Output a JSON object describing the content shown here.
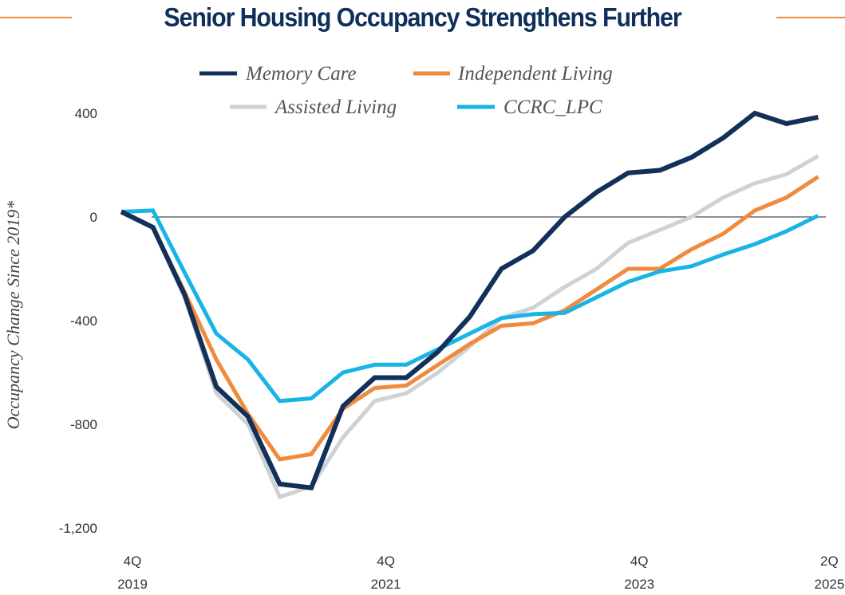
{
  "chart_data": {
    "type": "line",
    "title": "Senior Housing Occupancy Strengthens Further",
    "xlabel": "",
    "ylabel": "Occupancy Change Since 2019*",
    "ylim": [
      -1200,
      400
    ],
    "yticks": [
      400,
      0,
      -400,
      -800,
      -1200
    ],
    "ytick_labels": [
      "400",
      "0",
      "-400",
      "-800",
      "-1,200"
    ],
    "x": [
      "4Q 2019",
      "1Q 2020",
      "2Q 2020",
      "3Q 2020",
      "4Q 2020",
      "1Q 2021",
      "2Q 2021",
      "3Q 2021",
      "4Q 2021",
      "1Q 2022",
      "2Q 2022",
      "3Q 2022",
      "4Q 2022",
      "1Q 2023",
      "2Q 2023",
      "3Q 2023",
      "4Q 2023",
      "1Q 2024",
      "2Q 2024",
      "3Q 2024",
      "4Q 2024",
      "1Q 2025",
      "2Q 2025"
    ],
    "xticks": [
      {
        "index": 0,
        "line1": "4Q",
        "line2": "2019"
      },
      {
        "index": 8,
        "line1": "4Q",
        "line2": "2021"
      },
      {
        "index": 16,
        "line1": "4Q",
        "line2": "2023"
      },
      {
        "index": 22,
        "line1": "2Q",
        "line2": "2025"
      }
    ],
    "zero_line": true,
    "grid": false,
    "legend_position": "top",
    "series": [
      {
        "name": "Assisted Living",
        "color": "#cfd2d4",
        "values": [
          20,
          -40,
          -310,
          -680,
          -800,
          -1080,
          -1040,
          -850,
          -710,
          -680,
          -600,
          -500,
          -390,
          -350,
          -270,
          -200,
          -100,
          -50,
          0,
          75,
          130,
          165,
          235
        ]
      },
      {
        "name": "Independent Living",
        "color": "#f08a3e",
        "values": [
          20,
          -40,
          -290,
          -550,
          -760,
          -935,
          -915,
          -740,
          -660,
          -650,
          -570,
          -490,
          -420,
          -410,
          -360,
          -280,
          -200,
          -200,
          -125,
          -65,
          25,
          75,
          155
        ]
      },
      {
        "name": "CCRC_LPC",
        "color": "#18b4e6",
        "values": [
          20,
          25,
          -215,
          -450,
          -550,
          -710,
          -700,
          -600,
          -570,
          -570,
          -510,
          -450,
          -390,
          -375,
          -370,
          -310,
          -250,
          -210,
          -190,
          -145,
          -105,
          -55,
          5
        ]
      },
      {
        "name": "Memory Care",
        "color": "#13305a",
        "values": [
          20,
          -40,
          -300,
          -655,
          -770,
          -1030,
          -1045,
          -730,
          -620,
          -620,
          -520,
          -385,
          -200,
          -130,
          0,
          95,
          170,
          180,
          230,
          305,
          400,
          360,
          385
        ]
      }
    ],
    "legend": [
      {
        "name": "Memory Care",
        "color": "#13305a"
      },
      {
        "name": "Independent Living",
        "color": "#f08a3e"
      },
      {
        "name": "Assisted Living",
        "color": "#cfd2d4"
      },
      {
        "name": "CCRC_LPC",
        "color": "#18b4e6"
      }
    ]
  },
  "title": "Senior Housing Occupancy Strengthens Further",
  "accent_color": "#f08a3e",
  "title_color": "#10305c"
}
